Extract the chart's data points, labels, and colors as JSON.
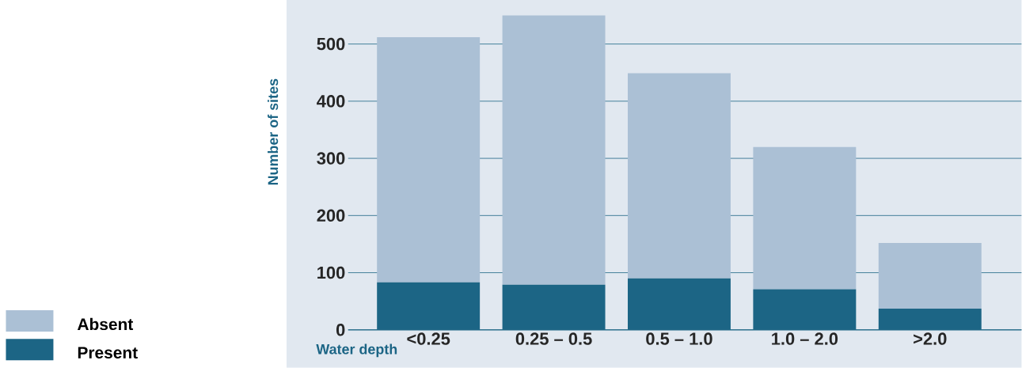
{
  "chart_data": {
    "type": "bar",
    "stacked": true,
    "xlabel": "Water depth",
    "ylabel": "Number of sites",
    "categories": [
      "<0.25",
      "0.25 – 0.5",
      "0.5 – 1.0",
      "1.0 – 2.0",
      ">2.0"
    ],
    "series": [
      {
        "name": "Present",
        "color": "#1c6585",
        "values": [
          83,
          79,
          90,
          71,
          37
        ]
      },
      {
        "name": "Absent",
        "color": "#abc0d5",
        "values": [
          429,
          471,
          359,
          249,
          115
        ]
      }
    ],
    "ylim": [
      0,
      577
    ],
    "yticks": [
      0,
      100,
      200,
      300,
      400,
      500
    ],
    "grid": "y",
    "legend": "bottom left"
  }
}
